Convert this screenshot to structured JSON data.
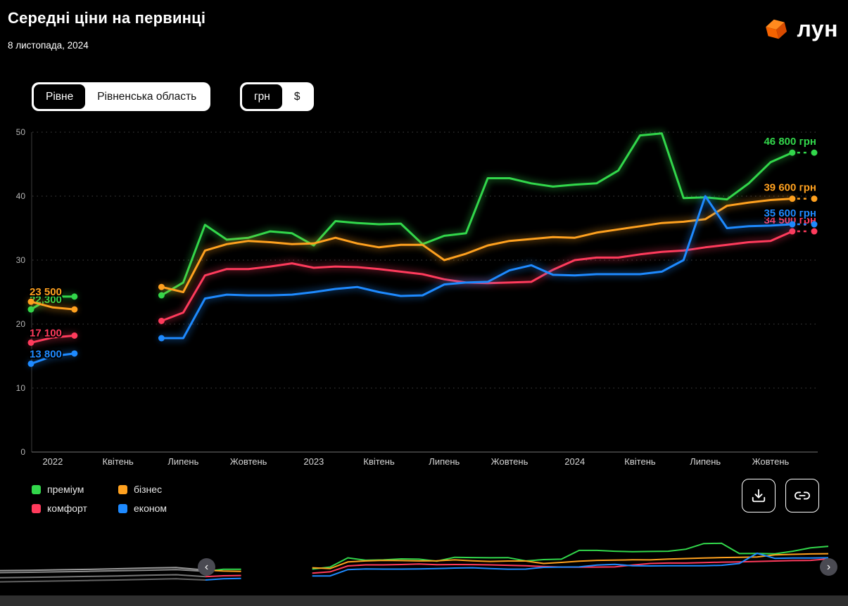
{
  "header": {
    "title": "Середні ціни на первинці",
    "date": "8 листопада, 2024",
    "brand": "лун"
  },
  "toggles": {
    "location": {
      "options": [
        "Рівне",
        "Рівненська область"
      ],
      "selected_index": 0
    },
    "currency": {
      "options": [
        "грн",
        "$"
      ],
      "selected_index": 0
    }
  },
  "chart_data": {
    "type": "line",
    "title": "Середні ціни на первинці",
    "unit": "грн",
    "ylim": [
      0,
      50
    ],
    "yticks": [
      0,
      10,
      20,
      30,
      40,
      50
    ],
    "grid": "dotted-horizontal",
    "legend_position": "bottom-left",
    "months_note": "monthly points from Dec 2021 to Nov 2024, gap Mar-May 2022",
    "x_ticks": [
      {
        "label": "2022",
        "i": 1
      },
      {
        "label": "Квітень",
        "i": 4
      },
      {
        "label": "Липень",
        "i": 7
      },
      {
        "label": "Жовтень",
        "i": 10
      },
      {
        "label": "2023",
        "i": 13
      },
      {
        "label": "Квітень",
        "i": 16
      },
      {
        "label": "Липень",
        "i": 19
      },
      {
        "label": "Жовтень",
        "i": 22
      },
      {
        "label": "2024",
        "i": 25
      },
      {
        "label": "Квітень",
        "i": 28
      },
      {
        "label": "Липень",
        "i": 31
      },
      {
        "label": "Жовтень",
        "i": 34
      }
    ],
    "series": [
      {
        "name": "преміум",
        "color": "#32d74b",
        "start_label": "22 300",
        "end_label": "46 800 грн",
        "end_value": 46800,
        "values": [
          22.3,
          24.3,
          24.3,
          null,
          null,
          null,
          24.5,
          26.5,
          35.5,
          33.2,
          33.5,
          34.5,
          34.2,
          32.3,
          36.1,
          35.8,
          35.6,
          35.7,
          32.5,
          33.8,
          34.2,
          42.8,
          42.8,
          42.0,
          41.5,
          41.8,
          42.0,
          44.0,
          49.5,
          49.8,
          39.7,
          39.8,
          39.5,
          42.0,
          45.3,
          46.8
        ]
      },
      {
        "name": "бізнес",
        "color": "#ffa11f",
        "start_label": "23 500",
        "end_label": "39 600 грн",
        "end_value": 39600,
        "values": [
          23.5,
          22.6,
          22.3,
          null,
          null,
          null,
          25.8,
          25.0,
          31.5,
          32.5,
          33.0,
          32.8,
          32.5,
          32.6,
          33.5,
          32.6,
          32.0,
          32.4,
          32.4,
          30.0,
          31.0,
          32.3,
          33.0,
          33.3,
          33.6,
          33.5,
          34.3,
          34.8,
          35.3,
          35.8,
          36.0,
          36.4,
          38.5,
          39.0,
          39.4,
          39.6
        ]
      },
      {
        "name": "комфорт",
        "color": "#ff3b5c",
        "start_label": "17 100",
        "end_label": "34 500 грн",
        "end_value": 34500,
        "values": [
          17.1,
          17.9,
          18.2,
          null,
          null,
          null,
          20.5,
          21.8,
          27.6,
          28.6,
          28.6,
          29.0,
          29.5,
          28.8,
          29.0,
          28.9,
          28.6,
          28.2,
          27.8,
          27.0,
          26.5,
          26.4,
          26.5,
          26.6,
          28.5,
          30.0,
          30.4,
          30.4,
          30.9,
          31.3,
          31.5,
          32.0,
          32.4,
          32.8,
          33.0,
          34.5
        ]
      },
      {
        "name": "економ",
        "color": "#1e8aff",
        "start_label": "13 800",
        "end_label": "35 600 грн",
        "end_value": 35600,
        "values": [
          13.8,
          15.0,
          15.4,
          null,
          null,
          null,
          17.8,
          17.8,
          24.0,
          24.6,
          24.5,
          24.5,
          24.6,
          25.0,
          25.5,
          25.8,
          25.0,
          24.4,
          24.5,
          26.2,
          26.5,
          26.6,
          28.4,
          29.2,
          27.7,
          27.6,
          27.8,
          27.8,
          27.8,
          28.2,
          30.0,
          40.0,
          35.0,
          35.3,
          35.4,
          35.6
        ]
      }
    ]
  },
  "legend": {
    "items": [
      "преміум",
      "бізнес",
      "комфорт",
      "економ"
    ]
  },
  "buttons": [
    {
      "icon": "download-icon"
    },
    {
      "icon": "link-icon"
    }
  ],
  "navigator": {
    "handles": [
      "‹",
      "›"
    ],
    "history": [
      {
        "color": "#9a9a9a",
        "values": [
          23.0,
          23.3,
          23.8,
          24.2,
          24.8,
          25.5,
          26.0,
          23.5
        ]
      },
      {
        "color": "#8a8a8a",
        "values": [
          21.0,
          21.4,
          21.8,
          22.3,
          22.8,
          23.4,
          24.0,
          22.3
        ]
      },
      {
        "color": "#767676",
        "values": [
          16.0,
          16.4,
          16.8,
          17.3,
          17.8,
          18.4,
          19.0,
          17.1
        ]
      },
      {
        "color": "#646464",
        "values": [
          12.0,
          12.4,
          12.8,
          13.3,
          13.8,
          14.4,
          15.0,
          13.8
        ]
      }
    ]
  }
}
